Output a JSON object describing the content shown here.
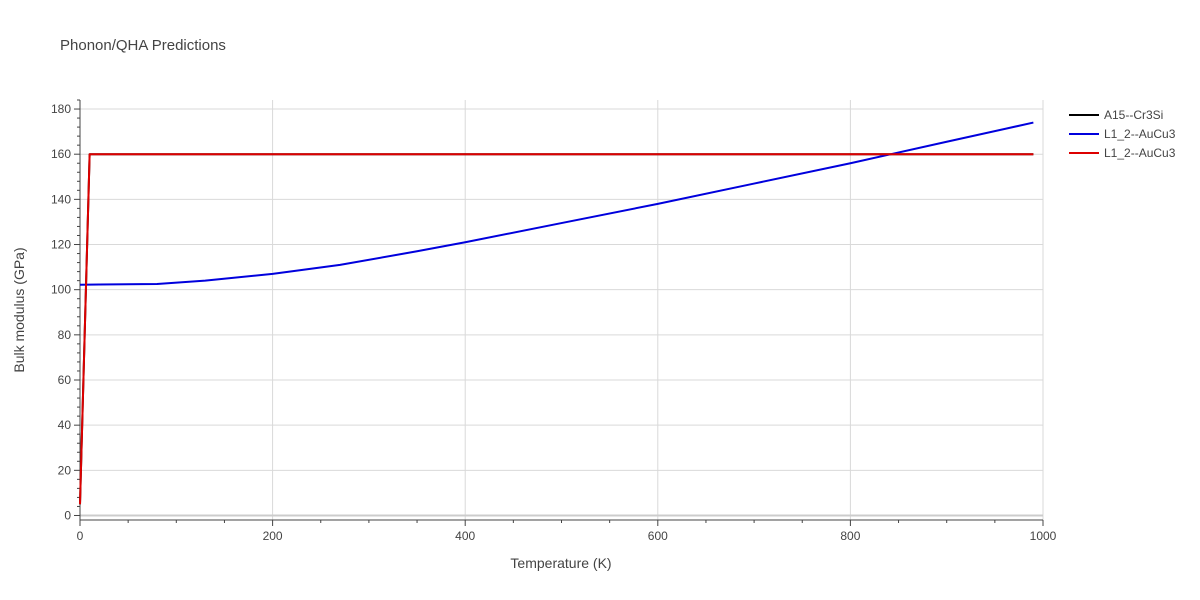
{
  "chart_data": {
    "type": "line",
    "title": "Phonon/QHA Predictions",
    "xlabel": "Temperature (K)",
    "ylabel": "Bulk modulus (GPa)",
    "xlim": [
      0,
      1000
    ],
    "ylim": [
      -2,
      184
    ],
    "x_ticks": [
      0,
      200,
      400,
      600,
      800,
      1000
    ],
    "y_ticks": [
      0,
      20,
      40,
      60,
      80,
      100,
      120,
      140,
      160,
      180
    ],
    "grid": true,
    "legend_position": "top-right",
    "series": [
      {
        "name": "A15--Cr3Si",
        "color": "#000000",
        "x": [
          0,
          10,
          990
        ],
        "y": [
          5,
          160,
          160
        ]
      },
      {
        "name": "L1_2--AuCu3",
        "color": "#0000dd",
        "x": [
          0,
          20,
          80,
          130,
          200,
          270,
          350,
          400,
          500,
          600,
          700,
          800,
          900,
          990
        ],
        "y": [
          102.2,
          102.3,
          102.5,
          104,
          107,
          111,
          117,
          121,
          129.5,
          138,
          147,
          156,
          165.5,
          174
        ]
      },
      {
        "name": "L1_2--AuCu3",
        "color": "#dd0000",
        "x": [
          0,
          10,
          990
        ],
        "y": [
          5,
          160,
          160
        ]
      }
    ]
  }
}
